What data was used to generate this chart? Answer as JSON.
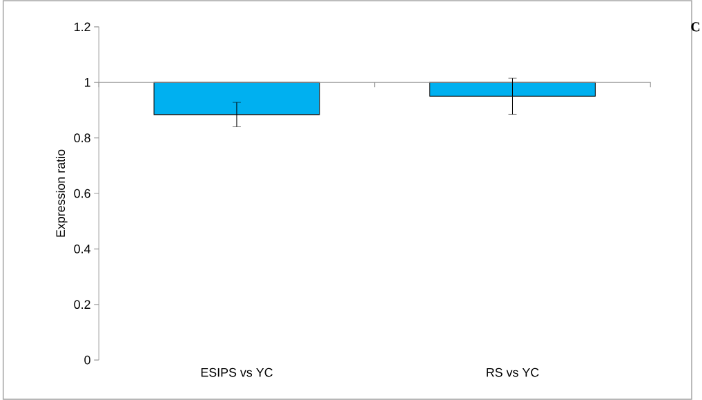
{
  "chart_data": {
    "type": "bar",
    "ylabel": "Expression ratio",
    "categories": [
      "ESIPS vs YC",
      "RS vs YC"
    ],
    "base": [
      1,
      1
    ],
    "values": [
      -0.116,
      -0.05
    ],
    "errors": [
      0.044,
      0.065
    ],
    "color": "#00b0f0",
    "ylim": [
      0,
      1.2
    ],
    "yticks": [
      0,
      0.2,
      0.4,
      0.6,
      0.8,
      1,
      1.2
    ],
    "annotations": [
      "C"
    ]
  }
}
